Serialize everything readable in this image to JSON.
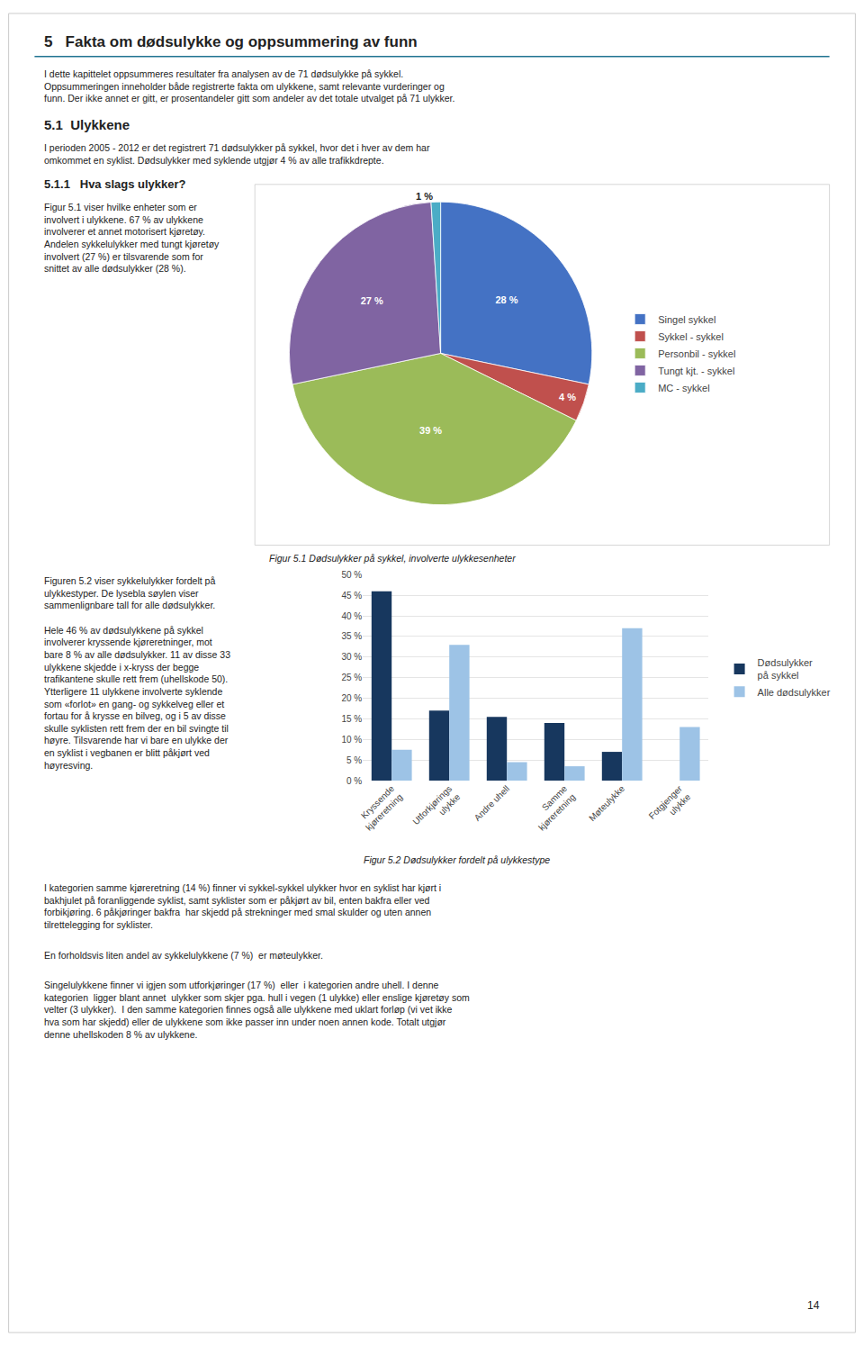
{
  "chart_data": [
    {
      "type": "pie",
      "title": "Figur 5.1 Dødsulykker på sykkel, involverte ulykkesenheter",
      "categories": [
        "Singel sykkel",
        "Sykkel - sykkel",
        "Personbil - sykkel",
        "Tungt kjt. - sykkel",
        "MC - sykkel"
      ],
      "values": [
        28,
        4,
        39,
        27,
        1
      ],
      "value_labels": [
        "28 %",
        "4 %",
        "39 %",
        "27 %",
        "1 %"
      ],
      "colors": [
        "#4472C4",
        "#C0504D",
        "#9BBB59",
        "#8064A2",
        "#4BACC6"
      ],
      "data_labels": true,
      "legend": "right",
      "annotations": [
        "5   Fakta om dødsulykke og oppsummering av funn",
        "I dette kapittelet oppsummeres resultater fra analysen av de 71 dødsulykke på sykkel.\nOppsummeringen inneholder både registrerte fakta om ulykkene, samt relevante vurderinger og\nfunn. Der ikke annet er gitt, er prosentandeler gitt som andeler av det totale utvalget på 71 ulykker.",
        "5.1  Ulykkene",
        "I perioden 2005 - 2012 er det registrert 71 dødsulykker på sykkel, hvor det i hver av dem har\nomkommet en syklist. Dødsulykker med syklende utgjør 4 % av alle trafikkdrepte.",
        "5.1.1   Hva slags ulykker?",
        "Figur 5.1 viser hvilke enheter som er\ninvolvert i ulykkene. 67 % av ulykkene\ninvolverer et annet motorisert kjøretøy.\nAndelen sykkelulykker med tungt kjøretøy\ninvolvert (27 %) er tilsvarende som for\nsnittet av alle dødsulykker (28 %)."
      ]
    },
    {
      "type": "bar",
      "title": "Figur 5.2 Dødsulykker fordelt på ulykkestype",
      "categories": [
        "Kryssende\nkjøreretning",
        "Utforkjørings\nulykke",
        "Andre uhell",
        "Samme\nkjøreretning",
        "Møteulykke",
        "Fotgjenger\nulykke"
      ],
      "series": [
        {
          "name": "Dødsulykker\npå sykkel",
          "color": "#17375E",
          "values": [
            46,
            17,
            15.5,
            14,
            7,
            0
          ]
        },
        {
          "name": "Alle dødsulykker",
          "color": "#9DC3E6",
          "values": [
            7.5,
            33,
            4.5,
            3.5,
            37,
            13
          ]
        }
      ],
      "ylim": [
        0,
        50
      ],
      "yticks": [
        {
          "value": 0,
          "label": "0 %"
        },
        {
          "value": 5,
          "label": "5 %"
        },
        {
          "value": 10,
          "label": "10 %"
        },
        {
          "value": 15,
          "label": "15 %"
        },
        {
          "value": 20,
          "label": "20 %"
        },
        {
          "value": 25,
          "label": "25 %"
        },
        {
          "value": 30,
          "label": "30 %"
        },
        {
          "value": 35,
          "label": "35 %"
        },
        {
          "value": 40,
          "label": "40 %"
        },
        {
          "value": 45,
          "label": "45 %"
        },
        {
          "value": 50,
          "label": "50 %"
        }
      ],
      "grid": true,
      "legend": "right",
      "annotations": [
        "Figuren 5.2 viser sykkelulykker fordelt på\nulykkestyper. De lysebla søylen viser\nsammenlignbare tall for alle dødsulykker.\n\nHele 46 % av dødsulykkene på sykkel\ninvolverer kryssende kjøreretninger, mot\nbare 8 % av alle dødsulykker. 11 av disse 33\nulykkene skjedde i x-kryss der begge\ntrafikantene skulle rett frem (uhellskode 50).\nYtterligere 11 ulykkene involverte syklende\nsom «forlot» en gang- og sykkelveg eller et\nfortau for å krysse en bilveg, og i 5 av disse\nskulle syklisten rett frem der en bil svingte til\nhøyre. Tilsvarende har vi bare en ulykke der\nen syklist i vegbanen er blitt påkjørt ved\nhøyresving.",
        "I kategorien samme kjøreretning (14 %) finner vi sykkel-sykkel ulykker hvor en syklist har kjørt i\nbakhjulet på foranliggende syklist, samt syklister som er påkjørt av bil, enten bakfra eller ved\nforbikjøring. 6 påkjøringer bakfra  har skjedd på strekninger med smal skulder og uten annen\ntilrettelegging for syklister.",
        "En forholdsvis liten andel av sykkelulykkene (7 %)  er møteulykker.",
        "Singelulykkene finner vi igjen som utforkjøringer (17 %)  eller  i kategorien andre uhell. I denne\nkategorien  ligger blant annet  ulykker som skjer pga. hull i vegen (1 ulykke) eller enslige kjøretøy som\nvelter (3 ulykker).  I den samme kategorien finnes også alle ulykkene med uklart forløp (vi vet ikke\nhva som har skjedd) eller de ulykkene som ikke passer inn under noen annen kode. Totalt utgjør\ndenne uhellskoden 8 % av ulykkene.",
        "14"
      ]
    }
  ]
}
